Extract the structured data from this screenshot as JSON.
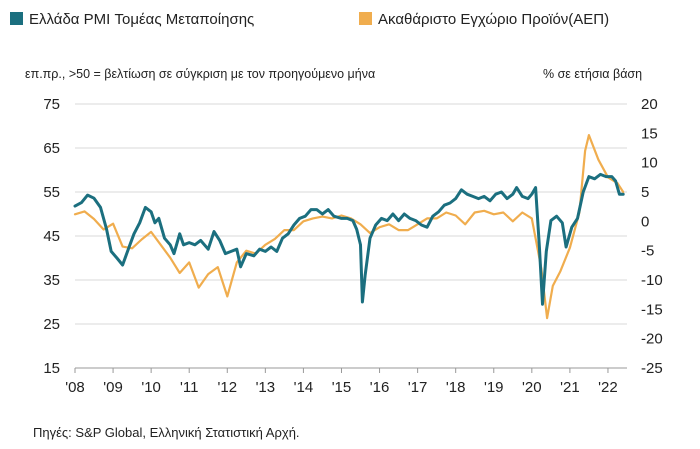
{
  "chart_data": {
    "type": "line",
    "legend": [
      {
        "name": "Ελλάδα PMI Τομέας Μεταποίησης",
        "color": "#1b6f7f"
      },
      {
        "name": "Ακαθάριστο Εγχώριο Προϊόν(ΑΕΠ)",
        "color": "#f0ad4e"
      }
    ],
    "left_axis_label": "επ.πρ., >50 = βελτίωση σε σύγκριση με τον προηγούμενο μήνα",
    "right_axis_label": "% σε ετήσια βάση",
    "left_axis": {
      "min": 15,
      "max": 75,
      "ticks": [
        "75",
        "65",
        "55",
        "45",
        "35",
        "25",
        "15"
      ],
      "values": [
        75,
        65,
        55,
        45,
        35,
        25,
        15
      ]
    },
    "right_axis": {
      "min": -25,
      "max": 20,
      "ticks": [
        "20",
        "15",
        "10",
        "5",
        "0",
        "-5",
        "-10",
        "-15",
        "-20",
        "-25"
      ],
      "values": [
        20,
        15,
        10,
        5,
        0,
        -5,
        -10,
        -15,
        -20,
        -25
      ]
    },
    "x_axis": {
      "min": 2008.0,
      "max": 2022.5,
      "ticks": [
        "'08",
        "'09",
        "'10",
        "'11",
        "'12",
        "'13",
        "'14",
        "'15",
        "'16",
        "'17",
        "'18",
        "'19",
        "'20",
        "'21",
        "'22"
      ],
      "tick_values": [
        2008,
        2009,
        2010,
        2011,
        2012,
        2013,
        2014,
        2015,
        2016,
        2017,
        2018,
        2019,
        2020,
        2021,
        2022
      ]
    },
    "grid": "horizontal",
    "legend_position": "top",
    "series": [
      {
        "name": "Ελλάδα PMI Τομέας Μεταποίησης",
        "axis": "left",
        "color": "#1b6f7f",
        "points": [
          [
            2008.0,
            51.8
          ],
          [
            2008.17,
            52.6
          ],
          [
            2008.33,
            54.3
          ],
          [
            2008.5,
            53.6
          ],
          [
            2008.67,
            51.5
          ],
          [
            2008.83,
            46.5
          ],
          [
            2008.95,
            41.5
          ],
          [
            2009.1,
            40.0
          ],
          [
            2009.25,
            38.4
          ],
          [
            2009.4,
            42.0
          ],
          [
            2009.55,
            45.5
          ],
          [
            2009.7,
            48.0
          ],
          [
            2009.85,
            51.5
          ],
          [
            2010.0,
            50.5
          ],
          [
            2010.1,
            48.0
          ],
          [
            2010.2,
            49.0
          ],
          [
            2010.35,
            44.5
          ],
          [
            2010.5,
            43.0
          ],
          [
            2010.6,
            41.0
          ],
          [
            2010.75,
            45.5
          ],
          [
            2010.85,
            43.0
          ],
          [
            2011.0,
            43.5
          ],
          [
            2011.15,
            43.0
          ],
          [
            2011.3,
            44.0
          ],
          [
            2011.5,
            42.0
          ],
          [
            2011.65,
            46.0
          ],
          [
            2011.8,
            44.0
          ],
          [
            2011.95,
            41.0
          ],
          [
            2012.1,
            41.5
          ],
          [
            2012.25,
            42.0
          ],
          [
            2012.35,
            38.0
          ],
          [
            2012.5,
            41.0
          ],
          [
            2012.7,
            40.5
          ],
          [
            2012.85,
            42.0
          ],
          [
            2013.0,
            41.5
          ],
          [
            2013.15,
            42.5
          ],
          [
            2013.3,
            41.5
          ],
          [
            2013.45,
            44.5
          ],
          [
            2013.6,
            45.5
          ],
          [
            2013.75,
            47.5
          ],
          [
            2013.9,
            49.0
          ],
          [
            2014.05,
            49.5
          ],
          [
            2014.2,
            51.0
          ],
          [
            2014.35,
            51.0
          ],
          [
            2014.5,
            50.0
          ],
          [
            2014.65,
            51.0
          ],
          [
            2014.8,
            49.5
          ],
          [
            2015.0,
            49.0
          ],
          [
            2015.15,
            49.0
          ],
          [
            2015.3,
            48.5
          ],
          [
            2015.4,
            46.5
          ],
          [
            2015.5,
            43.0
          ],
          [
            2015.55,
            30.0
          ],
          [
            2015.62,
            36.0
          ],
          [
            2015.75,
            44.5
          ],
          [
            2015.9,
            47.5
          ],
          [
            2016.05,
            49.0
          ],
          [
            2016.2,
            48.5
          ],
          [
            2016.35,
            50.0
          ],
          [
            2016.5,
            48.5
          ],
          [
            2016.65,
            50.0
          ],
          [
            2016.8,
            49.0
          ],
          [
            2016.95,
            48.5
          ],
          [
            2017.1,
            47.5
          ],
          [
            2017.25,
            47.0
          ],
          [
            2017.4,
            49.5
          ],
          [
            2017.55,
            50.5
          ],
          [
            2017.7,
            52.0
          ],
          [
            2017.85,
            52.5
          ],
          [
            2018.0,
            53.5
          ],
          [
            2018.15,
            55.5
          ],
          [
            2018.3,
            54.5
          ],
          [
            2018.45,
            54.0
          ],
          [
            2018.6,
            53.5
          ],
          [
            2018.75,
            54.0
          ],
          [
            2018.9,
            53.0
          ],
          [
            2019.05,
            54.5
          ],
          [
            2019.2,
            55.0
          ],
          [
            2019.35,
            53.5
          ],
          [
            2019.5,
            54.5
          ],
          [
            2019.6,
            56.0
          ],
          [
            2019.75,
            54.0
          ],
          [
            2019.9,
            53.5
          ],
          [
            2020.0,
            54.5
          ],
          [
            2020.1,
            56.0
          ],
          [
            2020.2,
            42.5
          ],
          [
            2020.28,
            29.5
          ],
          [
            2020.38,
            41.5
          ],
          [
            2020.5,
            48.5
          ],
          [
            2020.65,
            49.5
          ],
          [
            2020.8,
            48.0
          ],
          [
            2020.9,
            42.5
          ],
          [
            2021.05,
            47.0
          ],
          [
            2021.2,
            49.0
          ],
          [
            2021.35,
            55.0
          ],
          [
            2021.5,
            58.5
          ],
          [
            2021.65,
            58.0
          ],
          [
            2021.8,
            59.0
          ],
          [
            2021.95,
            58.5
          ],
          [
            2022.1,
            58.5
          ],
          [
            2022.2,
            57.5
          ],
          [
            2022.3,
            54.5
          ],
          [
            2022.4,
            54.5
          ]
        ]
      },
      {
        "name": "Ακαθάριστο Εγχώριο Προϊόν(ΑΕΠ)",
        "axis": "right",
        "color": "#f0ad4e",
        "points": [
          [
            2008.0,
            1.2
          ],
          [
            2008.25,
            1.7
          ],
          [
            2008.5,
            0.4
          ],
          [
            2008.75,
            -1.4
          ],
          [
            2009.0,
            -0.4
          ],
          [
            2009.25,
            -4.3
          ],
          [
            2009.5,
            -4.6
          ],
          [
            2009.75,
            -3.1
          ],
          [
            2010.0,
            -1.8
          ],
          [
            2010.25,
            -4.0
          ],
          [
            2010.5,
            -6.2
          ],
          [
            2010.75,
            -8.8
          ],
          [
            2011.0,
            -7.0
          ],
          [
            2011.25,
            -11.3
          ],
          [
            2011.5,
            -9.0
          ],
          [
            2011.75,
            -7.8
          ],
          [
            2012.0,
            -12.8
          ],
          [
            2012.25,
            -7.0
          ],
          [
            2012.5,
            -5.0
          ],
          [
            2012.75,
            -5.5
          ],
          [
            2013.0,
            -4.0
          ],
          [
            2013.25,
            -3.0
          ],
          [
            2013.5,
            -1.5
          ],
          [
            2013.75,
            -1.5
          ],
          [
            2014.0,
            0.0
          ],
          [
            2014.25,
            0.5
          ],
          [
            2014.5,
            0.8
          ],
          [
            2014.75,
            0.5
          ],
          [
            2015.0,
            1.0
          ],
          [
            2015.25,
            0.5
          ],
          [
            2015.5,
            -0.5
          ],
          [
            2015.75,
            -2.0
          ],
          [
            2016.0,
            -1.0
          ],
          [
            2016.25,
            -0.5
          ],
          [
            2016.5,
            -1.5
          ],
          [
            2016.75,
            -1.5
          ],
          [
            2017.0,
            -0.5
          ],
          [
            2017.25,
            0.5
          ],
          [
            2017.5,
            0.5
          ],
          [
            2017.75,
            1.5
          ],
          [
            2018.0,
            1.0
          ],
          [
            2018.25,
            -0.5
          ],
          [
            2018.5,
            1.5
          ],
          [
            2018.75,
            1.8
          ],
          [
            2019.0,
            1.2
          ],
          [
            2019.25,
            1.5
          ],
          [
            2019.5,
            0.0
          ],
          [
            2019.75,
            1.5
          ],
          [
            2020.0,
            0.5
          ],
          [
            2020.25,
            -8.0
          ],
          [
            2020.4,
            -16.5
          ],
          [
            2020.55,
            -11.0
          ],
          [
            2020.75,
            -8.5
          ],
          [
            2021.0,
            -4.5
          ],
          [
            2021.25,
            1.5
          ],
          [
            2021.4,
            12.0
          ],
          [
            2021.5,
            14.7
          ],
          [
            2021.75,
            10.5
          ],
          [
            2022.0,
            7.5
          ],
          [
            2022.25,
            6.5
          ],
          [
            2022.4,
            5.0
          ]
        ]
      }
    ]
  },
  "footer": {
    "source": "Πηγές: S&P Global, Ελληνική Στατιστική Αρχή."
  }
}
